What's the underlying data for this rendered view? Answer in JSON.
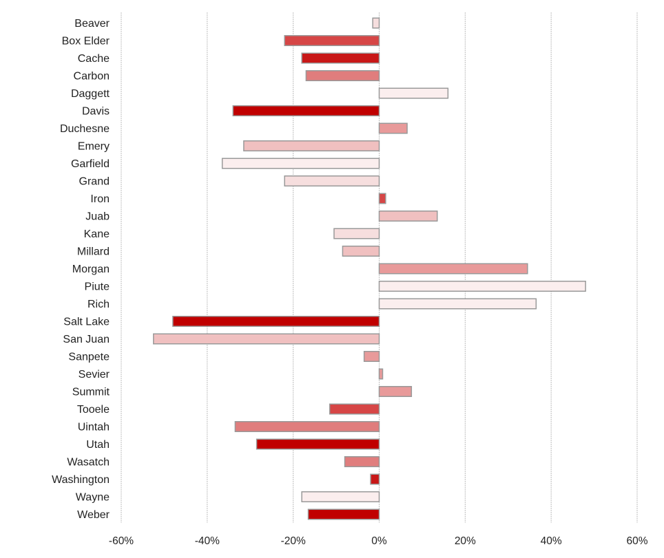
{
  "chart_data": {
    "type": "bar",
    "orientation": "horizontal",
    "title": "",
    "xlabel": "",
    "ylabel": "",
    "xlim": [
      -60,
      60
    ],
    "x_ticks": [
      -60,
      -40,
      -20,
      0,
      20,
      40,
      60
    ],
    "x_tick_labels": [
      "-60%",
      "-40%",
      "-20%",
      "0%",
      "20%",
      "40%",
      "60%"
    ],
    "grid": "vertical",
    "legend": "none",
    "colors": [
      "#c00000",
      "#d64646",
      "#e07d7d",
      "#e89a9a",
      "#f0c0c0",
      "#f6dede",
      "#fbeeee"
    ],
    "bars": [
      {
        "category": "Beaver",
        "value": -1.5,
        "color": "#f6dede"
      },
      {
        "category": "Box Elder",
        "value": -22,
        "color": "#d64646"
      },
      {
        "category": "Cache",
        "value": -18,
        "color": "#c81818"
      },
      {
        "category": "Carbon",
        "value": -17,
        "color": "#e07d7d"
      },
      {
        "category": "Daggett",
        "value": 16,
        "color": "#fbeeee"
      },
      {
        "category": "Davis",
        "value": -34,
        "color": "#c00000"
      },
      {
        "category": "Duchesne",
        "value": 6.5,
        "color": "#e89a9a"
      },
      {
        "category": "Emery",
        "value": -31.5,
        "color": "#f0c0c0"
      },
      {
        "category": "Garfield",
        "value": -36.5,
        "color": "#fbeeee"
      },
      {
        "category": "Grand",
        "value": -22,
        "color": "#f6dede"
      },
      {
        "category": "Iron",
        "value": 1.5,
        "color": "#d64646"
      },
      {
        "category": "Juab",
        "value": 13.5,
        "color": "#f0c0c0"
      },
      {
        "category": "Kane",
        "value": -10.5,
        "color": "#f6dede"
      },
      {
        "category": "Millard",
        "value": -8.5,
        "color": "#f0c0c0"
      },
      {
        "category": "Morgan",
        "value": 34.5,
        "color": "#e89a9a"
      },
      {
        "category": "Piute",
        "value": 48,
        "color": "#fbeeee"
      },
      {
        "category": "Rich",
        "value": 36.5,
        "color": "#fbeeee"
      },
      {
        "category": "Salt Lake",
        "value": -48,
        "color": "#c00000"
      },
      {
        "category": "San Juan",
        "value": -52.5,
        "color": "#f0c0c0"
      },
      {
        "category": "Sanpete",
        "value": -3.5,
        "color": "#e89a9a"
      },
      {
        "category": "Sevier",
        "value": 0.8,
        "color": "#e89a9a"
      },
      {
        "category": "Summit",
        "value": 7.5,
        "color": "#e89a9a"
      },
      {
        "category": "Tooele",
        "value": -11.5,
        "color": "#d64646"
      },
      {
        "category": "Uintah",
        "value": -33.5,
        "color": "#e07d7d"
      },
      {
        "category": "Utah",
        "value": -28.5,
        "color": "#c00000"
      },
      {
        "category": "Wasatch",
        "value": -8,
        "color": "#e07d7d"
      },
      {
        "category": "Washington",
        "value": -2,
        "color": "#c81818"
      },
      {
        "category": "Wayne",
        "value": -18,
        "color": "#fbeeee"
      },
      {
        "category": "Weber",
        "value": -16.5,
        "color": "#c00000"
      }
    ]
  }
}
